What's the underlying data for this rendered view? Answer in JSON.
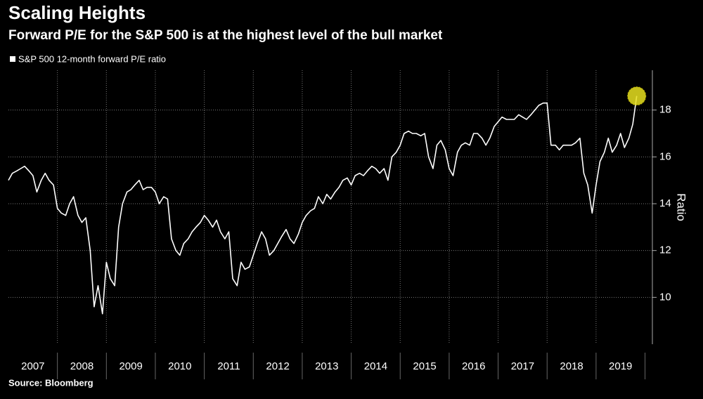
{
  "chart_data": {
    "type": "line",
    "title": "Scaling Heights",
    "subtitle": "Forward P/E for the S&P 500 is at the highest level of the bull market",
    "source": "Source: Bloomberg",
    "y_label": "Ratio",
    "xlim": [
      2007,
      2020.15
    ],
    "xticks": [
      2007,
      2008,
      2009,
      2010,
      2011,
      2012,
      2013,
      2014,
      2015,
      2016,
      2017,
      2018,
      2019
    ],
    "ylim": [
      8,
      19.7
    ],
    "yticks": [
      10,
      12,
      14,
      16,
      18
    ],
    "grid": true,
    "legend": "top-left",
    "series": [
      {
        "name": "S&P 500 12-month forward P/E ratio",
        "color": "#ffffff",
        "x": [
          2007.0,
          2007.08,
          2007.17,
          2007.25,
          2007.33,
          2007.42,
          2007.5,
          2007.58,
          2007.67,
          2007.75,
          2007.83,
          2007.92,
          2008.0,
          2008.08,
          2008.17,
          2008.25,
          2008.33,
          2008.42,
          2008.5,
          2008.58,
          2008.67,
          2008.75,
          2008.83,
          2008.92,
          2009.0,
          2009.08,
          2009.17,
          2009.25,
          2009.33,
          2009.42,
          2009.5,
          2009.58,
          2009.67,
          2009.75,
          2009.83,
          2009.92,
          2010.0,
          2010.08,
          2010.17,
          2010.25,
          2010.33,
          2010.42,
          2010.5,
          2010.58,
          2010.67,
          2010.75,
          2010.83,
          2010.92,
          2011.0,
          2011.08,
          2011.17,
          2011.25,
          2011.33,
          2011.42,
          2011.5,
          2011.58,
          2011.67,
          2011.75,
          2011.83,
          2011.92,
          2012.0,
          2012.08,
          2012.17,
          2012.25,
          2012.33,
          2012.42,
          2012.5,
          2012.58,
          2012.67,
          2012.75,
          2012.83,
          2012.92,
          2013.0,
          2013.08,
          2013.17,
          2013.25,
          2013.33,
          2013.42,
          2013.5,
          2013.58,
          2013.67,
          2013.75,
          2013.83,
          2013.92,
          2014.0,
          2014.08,
          2014.17,
          2014.25,
          2014.33,
          2014.42,
          2014.5,
          2014.58,
          2014.67,
          2014.75,
          2014.83,
          2014.92,
          2015.0,
          2015.08,
          2015.17,
          2015.25,
          2015.33,
          2015.42,
          2015.5,
          2015.58,
          2015.67,
          2015.75,
          2015.83,
          2015.92,
          2016.0,
          2016.08,
          2016.17,
          2016.25,
          2016.33,
          2016.42,
          2016.5,
          2016.58,
          2016.67,
          2016.75,
          2016.83,
          2016.92,
          2017.0,
          2017.08,
          2017.17,
          2017.25,
          2017.33,
          2017.42,
          2017.5,
          2017.58,
          2017.67,
          2017.75,
          2017.83,
          2017.92,
          2018.0,
          2018.08,
          2018.17,
          2018.25,
          2018.33,
          2018.42,
          2018.5,
          2018.58,
          2018.67,
          2018.75,
          2018.83,
          2018.92,
          2019.0,
          2019.08,
          2019.17,
          2019.25,
          2019.33,
          2019.42,
          2019.5,
          2019.58,
          2019.67,
          2019.75,
          2019.83
        ],
        "values": [
          15.0,
          15.3,
          15.4,
          15.5,
          15.6,
          15.4,
          15.2,
          14.5,
          15.0,
          15.3,
          15.0,
          14.8,
          13.8,
          13.6,
          13.5,
          14.0,
          14.3,
          13.5,
          13.2,
          13.4,
          12.0,
          9.6,
          10.5,
          9.3,
          11.5,
          10.8,
          10.5,
          13.0,
          14.0,
          14.5,
          14.6,
          14.8,
          15.0,
          14.6,
          14.7,
          14.7,
          14.5,
          14.0,
          14.3,
          14.2,
          12.5,
          12.0,
          11.8,
          12.3,
          12.5,
          12.8,
          13.0,
          13.2,
          13.5,
          13.3,
          13.0,
          13.3,
          12.8,
          12.5,
          12.8,
          10.8,
          10.5,
          11.5,
          11.2,
          11.3,
          11.8,
          12.3,
          12.8,
          12.5,
          11.8,
          12.0,
          12.3,
          12.6,
          12.9,
          12.5,
          12.3,
          12.7,
          13.2,
          13.5,
          13.7,
          13.8,
          14.3,
          14.0,
          14.4,
          14.2,
          14.5,
          14.7,
          15.0,
          15.1,
          14.8,
          15.2,
          15.3,
          15.2,
          15.4,
          15.6,
          15.5,
          15.3,
          15.5,
          15.0,
          16.0,
          16.2,
          16.5,
          17.0,
          17.1,
          17.0,
          17.0,
          16.9,
          17.0,
          16.0,
          15.5,
          16.5,
          16.7,
          16.3,
          15.5,
          15.2,
          16.2,
          16.5,
          16.6,
          16.5,
          17.0,
          17.0,
          16.8,
          16.5,
          16.8,
          17.3,
          17.5,
          17.7,
          17.6,
          17.6,
          17.6,
          17.8,
          17.7,
          17.6,
          17.8,
          18.0,
          18.2,
          18.3,
          18.3,
          16.5,
          16.5,
          16.3,
          16.5,
          16.5,
          16.5,
          16.6,
          16.8,
          15.3,
          14.8,
          13.6,
          14.8,
          15.8,
          16.2,
          16.8,
          16.2,
          16.5,
          17.0,
          16.4,
          16.8,
          17.4,
          18.6
        ]
      }
    ]
  }
}
